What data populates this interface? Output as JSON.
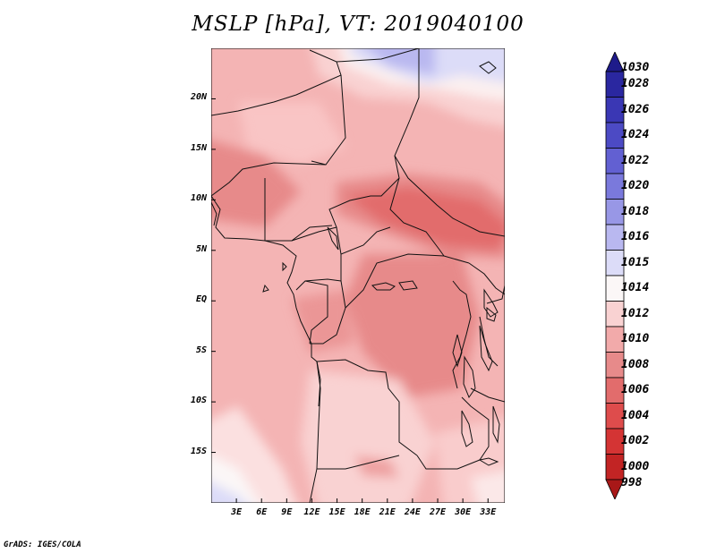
{
  "title": "MSLP [hPa], VT: 2019040100",
  "credit": "GrADS: IGES/COLA",
  "map": {
    "lon_range": [
      0,
      35
    ],
    "lat_range": [
      -20,
      25
    ],
    "lat_ticks": [
      {
        "value": 20,
        "label": "20N"
      },
      {
        "value": 15,
        "label": "15N"
      },
      {
        "value": 10,
        "label": "10N"
      },
      {
        "value": 5,
        "label": "5N"
      },
      {
        "value": 0,
        "label": "EQ"
      },
      {
        "value": -5,
        "label": "5S"
      },
      {
        "value": -10,
        "label": "10S"
      },
      {
        "value": -15,
        "label": "15S"
      }
    ],
    "lon_ticks": [
      {
        "value": 3,
        "label": "3E"
      },
      {
        "value": 6,
        "label": "6E"
      },
      {
        "value": 9,
        "label": "9E"
      },
      {
        "value": 12,
        "label": "12E"
      },
      {
        "value": 15,
        "label": "15E"
      },
      {
        "value": 18,
        "label": "18E"
      },
      {
        "value": 21,
        "label": "21E"
      },
      {
        "value": 24,
        "label": "24E"
      },
      {
        "value": 27,
        "label": "27E"
      },
      {
        "value": 30,
        "label": "30E"
      },
      {
        "value": 33,
        "label": "33E"
      }
    ]
  },
  "colorbar": {
    "unit": "hPa",
    "levels": [
      {
        "label": "1030",
        "color": "#1e1b8a"
      },
      {
        "label": "1028",
        "color": "#2a27a0"
      },
      {
        "label": "1026",
        "color": "#3a37b4"
      },
      {
        "label": "1024",
        "color": "#4c4ac4"
      },
      {
        "label": "1022",
        "color": "#6260d2"
      },
      {
        "label": "1020",
        "color": "#7a79dc"
      },
      {
        "label": "1018",
        "color": "#9897e6"
      },
      {
        "label": "1016",
        "color": "#b9b8f0"
      },
      {
        "label": "1015",
        "color": "#dcdcf8"
      },
      {
        "label": "1014",
        "color": "#fbf7f7"
      },
      {
        "label": "1012",
        "color": "#f9d2d2"
      },
      {
        "label": "1010",
        "color": "#f2aaaa"
      },
      {
        "label": "1008",
        "color": "#e78a8a"
      },
      {
        "label": "1006",
        "color": "#e26c6c"
      },
      {
        "label": "1004",
        "color": "#de4c4c"
      },
      {
        "label": "1002",
        "color": "#d43434"
      },
      {
        "label": "1000",
        "color": "#c22424"
      },
      {
        "label": "998",
        "color": "#a81818"
      }
    ]
  }
}
